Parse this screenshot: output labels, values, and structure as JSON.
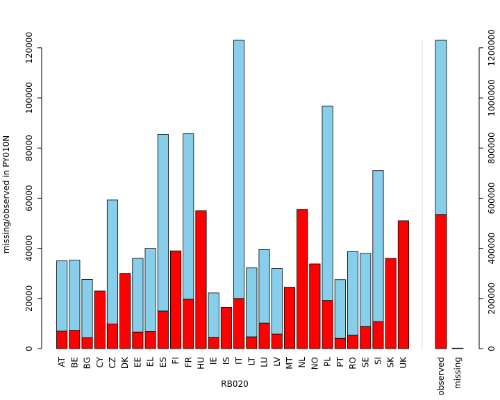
{
  "chart_data": [
    {
      "type": "bar",
      "stacked": true,
      "xlabel": "RB020",
      "ylabel": "missing/observed in PY010N",
      "ylim": [
        0,
        123000
      ],
      "yticks": [
        0,
        20000,
        40000,
        60000,
        80000,
        100000,
        120000
      ],
      "categories": [
        "AT",
        "BE",
        "BG",
        "CY",
        "CZ",
        "DK",
        "EE",
        "EL",
        "ES",
        "FI",
        "FR",
        "HU",
        "IE",
        "IS",
        "IT",
        "LT",
        "LU",
        "LV",
        "MT",
        "NL",
        "NO",
        "PL",
        "PT",
        "RO",
        "SE",
        "SI",
        "SK",
        "UK"
      ],
      "series": [
        {
          "name": "missing",
          "color": "#ff0000",
          "values": [
            7000,
            7300,
            4400,
            23000,
            9800,
            30000,
            6600,
            6800,
            15000,
            39000,
            19700,
            55000,
            4500,
            16500,
            20000,
            4700,
            10200,
            5800,
            24500,
            55500,
            33800,
            19200,
            4100,
            5400,
            8800,
            10800,
            36000,
            51000
          ]
        },
        {
          "name": "observed",
          "color": "#87ceeb",
          "values": [
            28000,
            28000,
            23200,
            0,
            49500,
            0,
            29400,
            33200,
            70500,
            0,
            66000,
            0,
            17700,
            0,
            103000,
            27500,
            29300,
            26200,
            0,
            0,
            0,
            77500,
            23400,
            33300,
            29200,
            60200,
            0,
            0
          ]
        }
      ]
    },
    {
      "type": "bar",
      "stacked": true,
      "ylim": [
        0,
        1230000
      ],
      "yticks": [
        0,
        200000,
        400000,
        600000,
        800000,
        1000000,
        1200000
      ],
      "categories": [
        "observed",
        "missing"
      ],
      "series": [
        {
          "name": "missing",
          "color": "#ff0000",
          "values": [
            535000,
            0
          ]
        },
        {
          "name": "observed",
          "color": "#87ceeb",
          "values": [
            695000,
            2000
          ]
        }
      ]
    }
  ]
}
